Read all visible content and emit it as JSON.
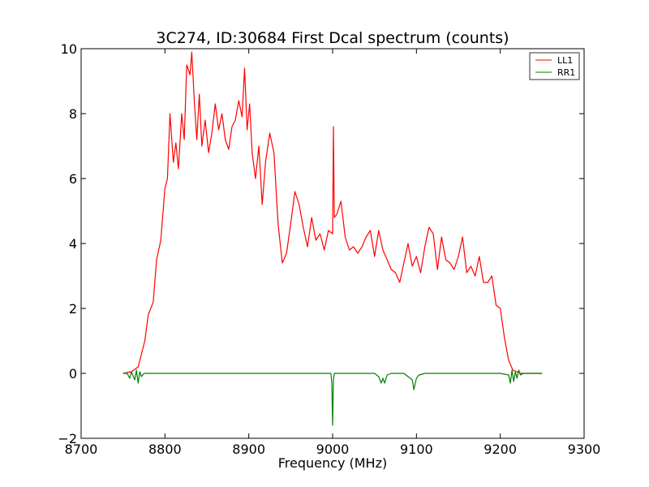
{
  "chart_data": {
    "type": "line",
    "title": "3C274, ID:30684 First Dcal spectrum (counts)",
    "xlabel": "Frequency (MHz)",
    "ylabel": "",
    "xlim": [
      8700,
      9300
    ],
    "ylim": [
      -2,
      10
    ],
    "xticks": [
      "8700",
      "8800",
      "8900",
      "9000",
      "9100",
      "9200",
      "9300"
    ],
    "yticks": [
      "−2",
      "0",
      "2",
      "4",
      "6",
      "8",
      "10"
    ],
    "grid": false,
    "legend_position": "top-right",
    "series": [
      {
        "name": "LL1",
        "color": "#ff0000",
        "x": [
          8750,
          8760,
          8768,
          8772,
          8776,
          8780,
          8786,
          8790,
          8795,
          8800,
          8803,
          8806,
          8810,
          8813,
          8816,
          8820,
          8823,
          8826,
          8830,
          8832,
          8835,
          8838,
          8841,
          8844,
          8848,
          8852,
          8856,
          8860,
          8864,
          8868,
          8872,
          8876,
          8880,
          8884,
          8888,
          8892,
          8895,
          8898,
          8901,
          8904,
          8908,
          8912,
          8916,
          8920,
          8925,
          8930,
          8935,
          8940,
          8945,
          8950,
          8955,
          8960,
          8965,
          8970,
          8975,
          8980,
          8985,
          8990,
          8995,
          9000,
          9001,
          9002,
          9005,
          9010,
          9015,
          9020,
          9025,
          9030,
          9035,
          9040,
          9045,
          9050,
          9055,
          9060,
          9065,
          9070,
          9075,
          9080,
          9085,
          9090,
          9095,
          9100,
          9105,
          9110,
          9115,
          9120,
          9125,
          9130,
          9135,
          9140,
          9145,
          9150,
          9155,
          9160,
          9165,
          9170,
          9175,
          9180,
          9185,
          9190,
          9195,
          9200,
          9205,
          9210,
          9215,
          9220,
          9225,
          9230,
          9240,
          9250
        ],
        "y": [
          0.0,
          0.05,
          0.2,
          0.6,
          1.0,
          1.8,
          2.2,
          3.5,
          4.1,
          5.7,
          6.0,
          8.0,
          6.5,
          7.1,
          6.3,
          8.0,
          7.2,
          9.5,
          9.2,
          9.9,
          8.4,
          7.2,
          8.6,
          7.0,
          7.8,
          6.8,
          7.4,
          8.3,
          7.5,
          8.0,
          7.2,
          6.9,
          7.6,
          7.8,
          8.4,
          7.9,
          9.4,
          7.5,
          8.3,
          6.8,
          6.0,
          7.0,
          5.2,
          6.5,
          7.4,
          6.8,
          4.6,
          3.4,
          3.7,
          4.6,
          5.6,
          5.2,
          4.5,
          3.9,
          4.8,
          4.1,
          4.3,
          3.8,
          4.4,
          4.3,
          7.6,
          4.8,
          4.9,
          5.3,
          4.2,
          3.8,
          3.9,
          3.7,
          3.9,
          4.2,
          4.4,
          3.6,
          4.4,
          3.8,
          3.5,
          3.2,
          3.1,
          2.8,
          3.4,
          4.0,
          3.3,
          3.6,
          3.1,
          3.9,
          4.5,
          4.3,
          3.2,
          4.2,
          3.5,
          3.4,
          3.2,
          3.6,
          4.2,
          3.1,
          3.3,
          3.0,
          3.6,
          2.8,
          2.8,
          3.0,
          2.1,
          2.0,
          1.1,
          0.4,
          0.1,
          0.05,
          0.0,
          0.0,
          0.0,
          0.0
        ]
      },
      {
        "name": "RR1",
        "color": "#008000",
        "x": [
          8750,
          8755,
          8758,
          8760,
          8764,
          8766,
          8768,
          8770,
          8772,
          8775,
          8780,
          8800,
          8850,
          8900,
          8950,
          8998,
          8999,
          9000,
          9001,
          9002,
          9005,
          9050,
          9055,
          9058,
          9060,
          9062,
          9065,
          9070,
          9085,
          9090,
          9095,
          9097,
          9100,
          9103,
          9110,
          9150,
          9200,
          9210,
          9212,
          9214,
          9216,
          9218,
          9220,
          9222,
          9224,
          9228,
          9235,
          9245,
          9250
        ],
        "y": [
          0.0,
          0.0,
          -0.15,
          0.05,
          -0.2,
          0.1,
          -0.3,
          0.05,
          -0.1,
          0.0,
          0.0,
          0.0,
          0.0,
          0.0,
          0.0,
          0.0,
          -0.3,
          -1.6,
          -0.2,
          0.0,
          0.0,
          0.0,
          -0.1,
          -0.3,
          -0.15,
          -0.3,
          -0.05,
          0.0,
          0.0,
          -0.1,
          -0.2,
          -0.5,
          -0.15,
          -0.05,
          0.0,
          0.0,
          0.0,
          -0.05,
          -0.3,
          0.1,
          -0.25,
          0.05,
          -0.15,
          0.1,
          -0.05,
          0.0,
          0.0,
          0.0,
          0.0
        ]
      }
    ]
  }
}
